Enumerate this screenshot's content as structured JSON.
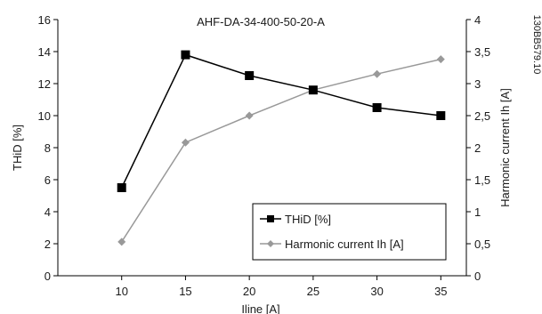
{
  "chart_data": {
    "type": "line",
    "title": "AHF-DA-34-400-50-20-A",
    "doc_id": "130BB579.10",
    "xlabel": "Iline [A]",
    "ylabel_left": "THiD [%]",
    "ylabel_right": "Harmonic current Ih [A]",
    "x": [
      10,
      15,
      20,
      25,
      30,
      35
    ],
    "xlim": [
      5,
      37
    ],
    "xticks": [
      "10",
      "15",
      "20",
      "25",
      "30",
      "35"
    ],
    "ylim_left": [
      0,
      16
    ],
    "yticks_left": [
      "0",
      "2",
      "4",
      "6",
      "8",
      "10",
      "12",
      "14",
      "16"
    ],
    "ylim_right": [
      0,
      4
    ],
    "yticks_right": [
      "0",
      "0,5",
      "1",
      "1,5",
      "2",
      "2,5",
      "3",
      "3,5",
      "4"
    ],
    "grid": false,
    "legend_position": "bottom-right",
    "series": [
      {
        "name": "THiD [%]",
        "axis": "left",
        "values": [
          5.5,
          13.8,
          12.5,
          11.6,
          10.5,
          10.0
        ],
        "color": "#000000",
        "marker": "square"
      },
      {
        "name": "Harmonic current Ih [A]",
        "axis": "right",
        "values": [
          0.53,
          2.08,
          2.5,
          2.9,
          3.15,
          3.38
        ],
        "color": "#999999",
        "marker": "diamond"
      }
    ]
  }
}
